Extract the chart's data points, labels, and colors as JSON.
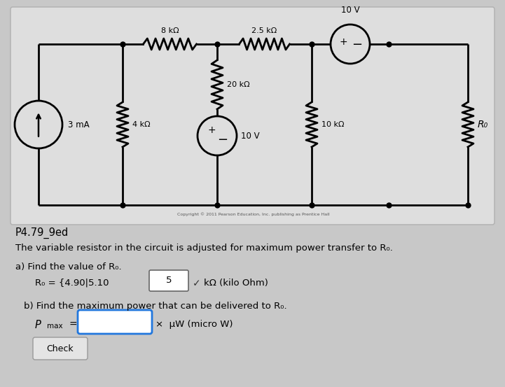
{
  "bg_color": "#c8c8c8",
  "circuit_bg": "#dcdcdc",
  "title_text": "P4.79_9ed",
  "desc_text": "The variable resistor in the circuit is adjusted for maximum power transfer to R₀.",
  "part_a_label": "a) Find the value of R₀.",
  "part_a_eq": "R₀ = {4.90|5.10",
  "part_a_answer": "5",
  "part_a_unit": "kΩ (kilo Ohm)",
  "part_b_label": "b) Find the maximum power that can be delivered to R₀.",
  "part_b_unit": "×  μW (micro W)",
  "check_text": "Check",
  "copyright": "Copyright © 2011 Pearson Education, Inc. publishing as Prentice Hall",
  "R1": "8 kΩ",
  "R2": "2.5 kΩ",
  "R3": "20 kΩ",
  "R4": "4 kΩ",
  "R5": "10 kΩ",
  "V1": "10 V",
  "V2": "10 V",
  "I1": "3 mA",
  "Ro": "R₀"
}
